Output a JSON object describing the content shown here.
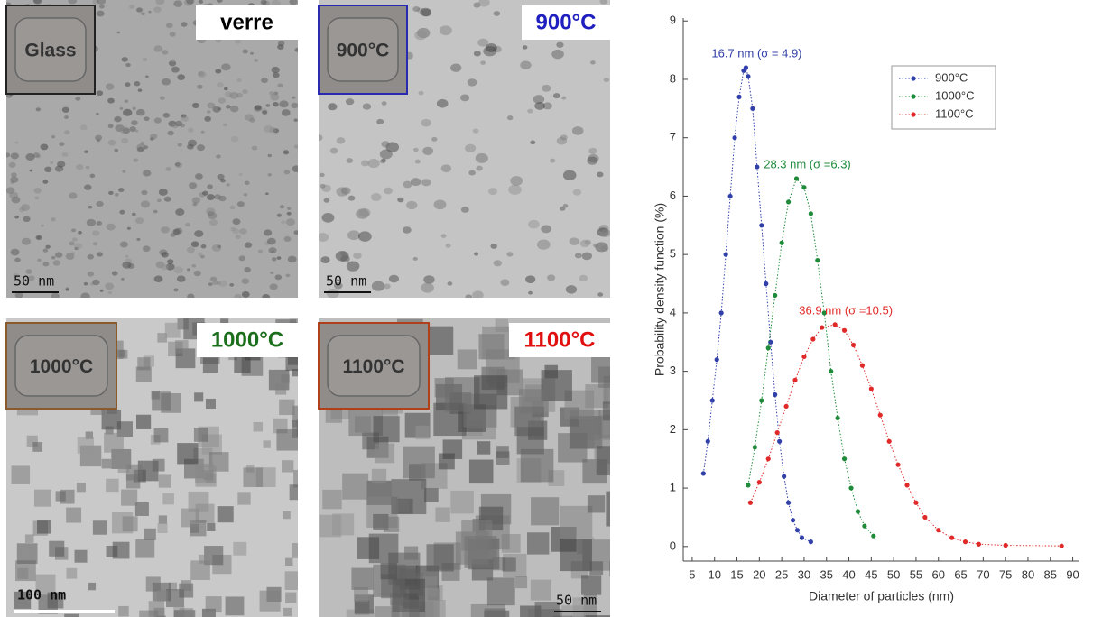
{
  "panels": [
    {
      "inset": "Glass",
      "label": "verre",
      "label_color": "#000000",
      "frame_color": "#222222",
      "scale_bar": "50 nm"
    },
    {
      "inset": "900°C",
      "label": "900°C",
      "label_color": "#1f1fbf",
      "frame_color": "#2a2ab0",
      "scale_bar": "50 nm"
    },
    {
      "inset": "1000°C",
      "label": "1000°C",
      "label_color": "#1b6e1b",
      "frame_color": "#8a5a2a",
      "scale_bar": "100 nm"
    },
    {
      "inset": "1100°C",
      "label": "1100°C",
      "label_color": "#e01010",
      "frame_color": "#b0401a",
      "scale_bar": "50 nm"
    }
  ],
  "chart_data": {
    "type": "line",
    "x_label": "Diameter of particles (nm)",
    "y_label": "Probability density function (%)",
    "xlim": [
      3,
      91.5
    ],
    "ylim": [
      -0.25,
      9.05
    ],
    "xticks": [
      5,
      10,
      15,
      20,
      25,
      30,
      35,
      40,
      45,
      50,
      55,
      60,
      65,
      70,
      75,
      80,
      85,
      90
    ],
    "yticks": [
      0,
      1,
      2,
      3,
      4,
      5,
      6,
      7,
      8,
      9
    ],
    "legend": "upper right",
    "series": [
      {
        "name": "900°C",
        "color": "#3140a8",
        "annotation": "16.7 nm (σ = 4.9)",
        "x": [
          7.5,
          8.5,
          9.5,
          10.5,
          11.5,
          12.5,
          13.5,
          14.5,
          15.5,
          16.5,
          17,
          17.5,
          18.5,
          19.5,
          20.5,
          21.5,
          22.5,
          23.5,
          24.5,
          25.5,
          26.5,
          27.5,
          28.5,
          29.5,
          31.5
        ],
        "values": [
          1.25,
          1.8,
          2.5,
          3.2,
          4.0,
          5.0,
          6.0,
          7.0,
          7.7,
          8.15,
          8.2,
          8.05,
          7.5,
          6.5,
          5.5,
          4.5,
          3.5,
          2.6,
          1.8,
          1.2,
          0.75,
          0.45,
          0.28,
          0.15,
          0.08
        ]
      },
      {
        "name": "1000°C",
        "color": "#1e8a3a",
        "annotation": "28.3 nm (σ =6.3)",
        "x": [
          17.5,
          19,
          20.5,
          22,
          23.5,
          25,
          26.5,
          28.3,
          30,
          31.5,
          33,
          34.5,
          36,
          37.5,
          39,
          40.5,
          42,
          43.5,
          45.5
        ],
        "values": [
          1.05,
          1.7,
          2.5,
          3.4,
          4.3,
          5.2,
          5.9,
          6.3,
          6.15,
          5.7,
          4.9,
          4.0,
          3.0,
          2.2,
          1.5,
          1.0,
          0.6,
          0.35,
          0.18
        ]
      },
      {
        "name": "1100°C",
        "color": "#e02a2a",
        "annotation": "36.9 nm (σ =10.5)",
        "x": [
          18,
          20,
          22,
          24,
          26,
          28,
          30,
          32,
          34,
          36.9,
          39,
          41,
          43,
          45,
          47,
          49,
          51,
          53,
          55,
          57,
          60,
          63,
          66,
          69,
          75,
          87.5
        ],
        "values": [
          0.75,
          1.1,
          1.5,
          1.95,
          2.4,
          2.85,
          3.25,
          3.55,
          3.75,
          3.8,
          3.7,
          3.45,
          3.1,
          2.7,
          2.25,
          1.8,
          1.4,
          1.05,
          0.75,
          0.5,
          0.28,
          0.15,
          0.08,
          0.04,
          0.02,
          0.01
        ]
      }
    ]
  }
}
